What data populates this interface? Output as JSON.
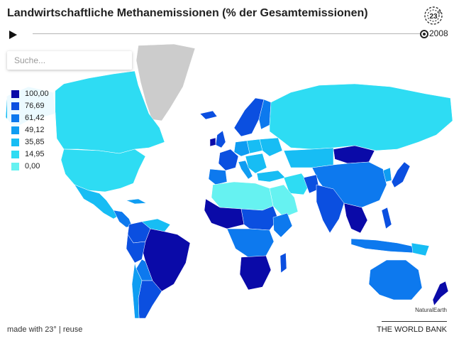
{
  "header": {
    "title": "Landwirtschaftliche Methanemissionen (% der Gesamtemissionen)"
  },
  "logo": {
    "icon": "23-degrees-logo-icon"
  },
  "timeline": {
    "play_icon": "play-icon",
    "year": "2008",
    "progress": 1.0
  },
  "search": {
    "placeholder": "Suche..."
  },
  "legend": {
    "items": [
      {
        "label": "100,00",
        "color": "#0a0aa8"
      },
      {
        "label": "76,69",
        "color": "#0b4fe0"
      },
      {
        "label": "61,42",
        "color": "#0d79ee"
      },
      {
        "label": "49,12",
        "color": "#0f9df2"
      },
      {
        "label": "35,85",
        "color": "#17bdf4"
      },
      {
        "label": "14,95",
        "color": "#2edcf3"
      },
      {
        "label": "0,00",
        "color": "#66f2f1"
      }
    ],
    "no_data_color": "#cccccc"
  },
  "map": {
    "attribution": "NaturalEarth"
  },
  "footer": {
    "made_with": "made with 23°",
    "separator": " | ",
    "reuse": "reuse",
    "source": "THE WORLD BANK"
  }
}
